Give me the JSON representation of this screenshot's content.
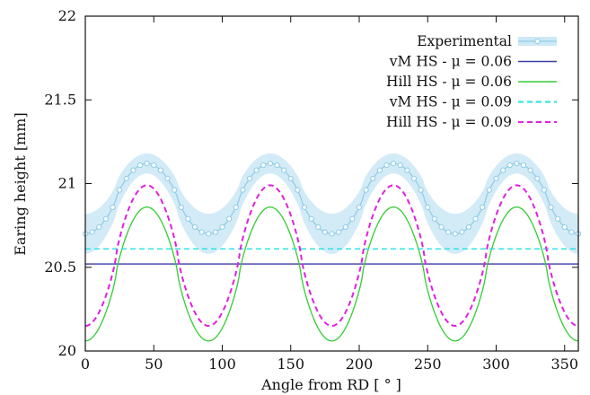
{
  "chart_data": {
    "type": "line",
    "title": "",
    "xlabel": "Angle from RD [ ° ]",
    "ylabel": "Earing height [mm]",
    "xlim": [
      0,
      360
    ],
    "ylim": [
      20,
      22
    ],
    "xticks": [
      0,
      50,
      100,
      150,
      200,
      250,
      300,
      350
    ],
    "yticks": [
      20,
      20.5,
      21,
      21.5,
      22
    ],
    "ytick_labels": [
      "20",
      "20.5",
      "21",
      "21.5",
      "22"
    ],
    "grid": false,
    "legend_position": "top-right",
    "series": [
      {
        "name": "Experimental",
        "style": "line-with-markers-and-band",
        "color": "#8ecbe6",
        "band_color": "#cde9f6",
        "mean_center": 20.91,
        "amplitude": 0.21,
        "band_half_width_range": [
          0.06,
          0.12
        ],
        "x_range": [
          0,
          360
        ],
        "step": 5
      },
      {
        "name": "vM HS - μ = 0.06",
        "style": "solid",
        "color": "#3c3ca8",
        "x": [
          0,
          360
        ],
        "y": [
          20.52,
          20.52
        ]
      },
      {
        "name": "Hill HS - μ = 0.06",
        "style": "solid",
        "color": "#33cc33",
        "peaks": [
          45,
          135,
          225,
          315
        ],
        "troughs": [
          0,
          90,
          180,
          270,
          360
        ],
        "peak_value": 20.86,
        "trough_value": 20.06
      },
      {
        "name": "vM HS - μ = 0.09",
        "style": "dashed",
        "color": "#22e0e0",
        "x": [
          0,
          360
        ],
        "y": [
          20.61,
          20.61
        ]
      },
      {
        "name": "Hill HS - μ = 0.09",
        "style": "dashed",
        "color": "#e020e0",
        "peaks": [
          45,
          135,
          225,
          315
        ],
        "troughs": [
          0,
          90,
          180,
          270,
          360
        ],
        "peak_value": 20.99,
        "trough_value": 20.15
      }
    ]
  }
}
